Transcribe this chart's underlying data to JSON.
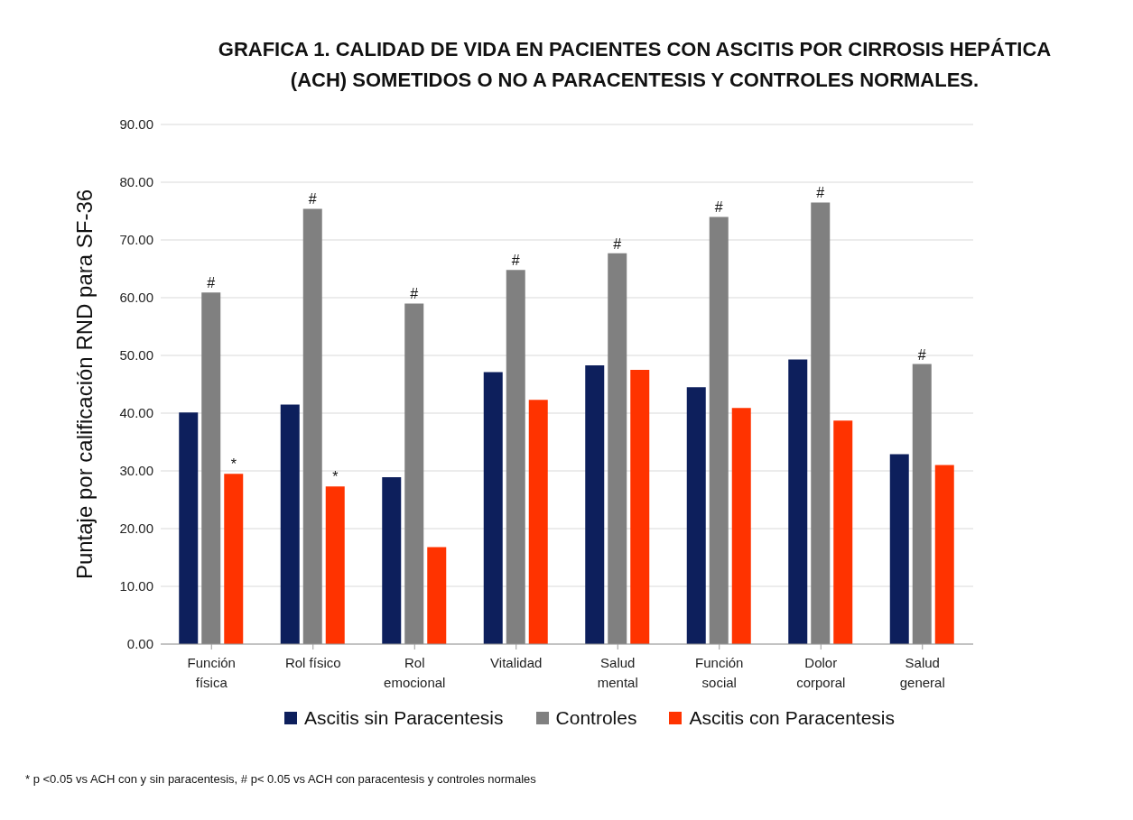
{
  "chart_data": {
    "type": "bar",
    "title": "GRAFICA 1. CALIDAD DE VIDA EN PACIENTES CON ASCITIS POR CIRROSIS HEPÁTICA  (ACH) SOMETIDOS O NO A PARACENTESIS Y CONTROLES NORMALES.",
    "ylabel": "Puntaje por calificación RND para SF-36",
    "categories": [
      "Función física",
      "Rol físico",
      "Rol emocional",
      "Vitalidad",
      "Salud mental",
      "Función social",
      "Dolor corporal",
      "Salud general"
    ],
    "series": [
      {
        "name": "Ascitis sin Paracentesis",
        "color": "#0d1f5c",
        "values": [
          40.1,
          41.5,
          28.9,
          47.1,
          48.3,
          44.5,
          49.3,
          32.9
        ]
      },
      {
        "name": "Controles",
        "color": "#808080",
        "values": [
          60.9,
          75.4,
          59.0,
          64.8,
          67.7,
          74.0,
          76.5,
          48.5
        ]
      },
      {
        "name": "Ascitis con Paracentesis",
        "color": "#ff3300",
        "values": [
          29.5,
          27.3,
          16.8,
          42.3,
          47.5,
          40.9,
          38.7,
          31.0
        ],
        "value_labels": [
          "*",
          "*",
          null,
          null,
          null,
          null,
          null,
          null
        ]
      }
    ],
    "ylim": [
      0,
      90
    ],
    "yticks": [
      {
        "value": 0,
        "label": "0.00"
      },
      {
        "value": 10,
        "label": "10.00"
      },
      {
        "value": 20,
        "label": "20.00"
      },
      {
        "value": 30,
        "label": "30.00"
      },
      {
        "value": 40,
        "label": "40.00"
      },
      {
        "value": 50,
        "label": "50.00"
      },
      {
        "value": 60,
        "label": "60.00"
      },
      {
        "value": 70,
        "label": "70.00"
      },
      {
        "value": 80,
        "label": "80.00"
      },
      {
        "value": 90,
        "label": "90.00"
      }
    ],
    "grid": "y",
    "legend": "bottom",
    "annotations": [
      {
        "text": "#",
        "x": "Función física",
        "y": 60.9
      },
      {
        "text": "#",
        "x": "Rol físico",
        "y": 75.4
      },
      {
        "text": "#",
        "x": "Rol emocional",
        "y": 59.0
      },
      {
        "text": "#",
        "x": "Vitalidad",
        "y": 64.8
      },
      {
        "text": "#",
        "x": "Salud mental",
        "y": 67.7
      },
      {
        "text": "#",
        "x": "Función social",
        "y": 74.0
      },
      {
        "text": "#",
        "x": "Dolor corporal",
        "y": 76.5
      },
      {
        "text": "#",
        "x": "Salud general",
        "y": 48.5
      },
      "* p <0.05 vs  ACH  con y sin paracentesis, # p< 0.05  vs  ACH con paracentesis  y controles normales"
    ]
  }
}
